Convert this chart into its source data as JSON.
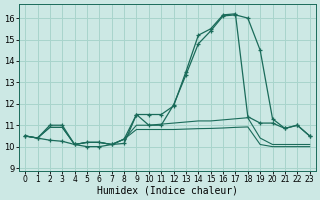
{
  "xlabel": "Humidex (Indice chaleur)",
  "background_color": "#cce8e4",
  "grid_color": "#a8d4cc",
  "line_color": "#1a6b5a",
  "xlim": [
    -0.5,
    23.5
  ],
  "ylim": [
    8.85,
    16.65
  ],
  "yticks": [
    9,
    10,
    11,
    12,
    13,
    14,
    15,
    16
  ],
  "xticks": [
    0,
    1,
    2,
    3,
    4,
    5,
    6,
    7,
    8,
    9,
    10,
    11,
    12,
    13,
    14,
    15,
    16,
    17,
    18,
    19,
    20,
    21,
    22,
    23
  ],
  "xtick_labels": [
    "0",
    "1",
    "2",
    "3",
    "4",
    "5",
    "6",
    "7",
    "8",
    "9",
    "10",
    "11",
    "12",
    "13",
    "14",
    "15",
    "16",
    "17",
    "18",
    "19",
    "20",
    "21",
    "22",
    "23"
  ],
  "series1_x": [
    0,
    1,
    2,
    3,
    4,
    5,
    6,
    7,
    8,
    9,
    10,
    11,
    12,
    13,
    14,
    15,
    16,
    17,
    18,
    19,
    20,
    21,
    22,
    23
  ],
  "series1_y": [
    10.5,
    10.4,
    10.3,
    10.25,
    10.1,
    10.0,
    10.0,
    10.1,
    10.15,
    11.5,
    11.0,
    11.0,
    11.95,
    13.35,
    14.8,
    15.4,
    16.1,
    16.15,
    16.0,
    14.5,
    11.3,
    10.85,
    11.0,
    10.5
  ],
  "series2_x": [
    0,
    1,
    2,
    3,
    4,
    5,
    6,
    7,
    8,
    9,
    10,
    11,
    12,
    13,
    14,
    15,
    16,
    17,
    18,
    19,
    20,
    21,
    22,
    23
  ],
  "series2_y": [
    10.5,
    10.4,
    10.9,
    10.9,
    10.1,
    10.2,
    10.2,
    10.1,
    10.35,
    11.0,
    11.0,
    11.05,
    11.1,
    11.15,
    11.2,
    11.2,
    11.25,
    11.3,
    11.35,
    10.4,
    10.1,
    10.1,
    10.1,
    10.1
  ],
  "series3_x": [
    0,
    1,
    2,
    3,
    4,
    5,
    6,
    7,
    8,
    9,
    10,
    11,
    12,
    13,
    14,
    15,
    16,
    17,
    18,
    19,
    20,
    21,
    22,
    23
  ],
  "series3_y": [
    10.5,
    10.4,
    10.9,
    10.9,
    10.1,
    10.2,
    10.2,
    10.1,
    10.35,
    10.8,
    10.8,
    10.8,
    10.8,
    10.82,
    10.84,
    10.85,
    10.87,
    10.9,
    10.92,
    10.1,
    10.0,
    10.0,
    10.0,
    10.0
  ],
  "series4_x": [
    0,
    1,
    2,
    3,
    4,
    5,
    6,
    7,
    8,
    9,
    10,
    11,
    12,
    13,
    14,
    15,
    16,
    17,
    18,
    19,
    20,
    21,
    22,
    23
  ],
  "series4_y": [
    10.5,
    10.4,
    11.0,
    11.0,
    10.1,
    10.2,
    10.2,
    10.1,
    10.35,
    11.5,
    11.5,
    11.5,
    11.9,
    13.5,
    15.2,
    15.5,
    16.15,
    16.2,
    11.4,
    11.1,
    11.1,
    10.85,
    11.0,
    10.5
  ]
}
